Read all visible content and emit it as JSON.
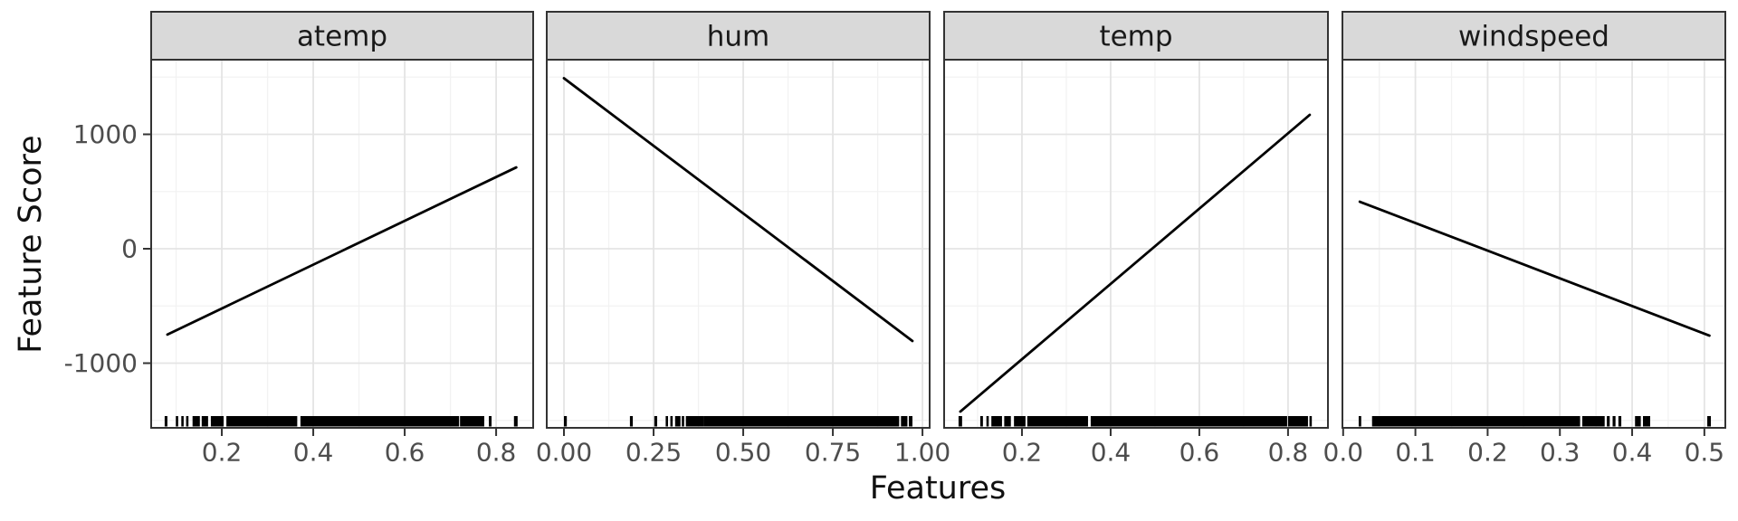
{
  "chart_data": {
    "type": "line",
    "title": "",
    "xlabel": "Features",
    "ylabel": "Feature Score",
    "ylim": [
      -1565,
      1652
    ],
    "grid": "major+minor",
    "legend": "none",
    "y_axis": {
      "major_ticks": [
        1000,
        0,
        -1000
      ],
      "tick_labels": [
        "1000",
        "0",
        "-1000"
      ],
      "minor_ticks": [
        1500,
        500,
        -500,
        -1500
      ]
    },
    "theme": {
      "strip_bg": "#D9D9D9",
      "strip_text": "#1A1A1A",
      "panel_bg": "#FFFFFF",
      "panel_border": "#333333",
      "grid_major": "#E4E4E4",
      "grid_minor": "#F2F2F2",
      "tick_mark": "#333333",
      "tick_label_color": "#4D4D4D",
      "line_color": "#000000",
      "rug_color": "#000000",
      "axis_title_color": "#111111"
    },
    "facets": [
      {
        "label": "atemp",
        "xlim": [
          0.0455,
          0.881
        ],
        "x_major_ticks": [
          0.2,
          0.4,
          0.6,
          0.8
        ],
        "x_tick_labels": [
          "0.2",
          "0.4",
          "0.6",
          "0.8"
        ],
        "x_minor_ticks": [
          0.1,
          0.3,
          0.5,
          0.7
        ],
        "line": {
          "x": [
            0.081,
            0.844
          ],
          "y": [
            -750,
            711
          ]
        },
        "rug": [
          [
            0.075,
            0.081
          ],
          [
            0.1,
            0.104
          ],
          [
            0.112,
            0.116
          ],
          [
            0.122,
            0.127
          ],
          [
            0.136,
            0.152
          ],
          [
            0.156,
            0.17
          ],
          [
            0.176,
            0.204
          ],
          [
            0.21,
            0.365
          ],
          [
            0.372,
            0.719
          ],
          [
            0.721,
            0.774
          ],
          [
            0.784,
            0.79
          ],
          [
            0.839,
            0.847
          ]
        ]
      },
      {
        "label": "hum",
        "xlim": [
          -0.048,
          1.02
        ],
        "x_major_ticks": [
          0,
          0.25,
          0.5,
          0.75,
          1.0
        ],
        "x_tick_labels": [
          "0.00",
          "0.25",
          "0.50",
          "0.75",
          "1.00"
        ],
        "x_minor_ticks": [
          0.125,
          0.375,
          0.625,
          0.875
        ],
        "line": {
          "x": [
            0.0,
            0.972
          ],
          "y": [
            1490,
            -806
          ]
        },
        "rug": [
          [
            0.0,
            0.008
          ],
          [
            0.184,
            0.192
          ],
          [
            0.252,
            0.26
          ],
          [
            0.285,
            0.289
          ],
          [
            0.298,
            0.302
          ],
          [
            0.31,
            0.325
          ],
          [
            0.33,
            0.334
          ],
          [
            0.34,
            0.389
          ],
          [
            0.389,
            0.935
          ],
          [
            0.94,
            0.958
          ],
          [
            0.962,
            0.972
          ]
        ]
      },
      {
        "label": "temp",
        "xlim": [
          0.0245,
          0.89
        ],
        "x_major_ticks": [
          0.2,
          0.4,
          0.6,
          0.8
        ],
        "x_tick_labels": [
          "0.2",
          "0.4",
          "0.6",
          "0.8"
        ],
        "x_minor_ticks": [
          0.1,
          0.3,
          0.5,
          0.7
        ],
        "line": {
          "x": [
            0.061,
            0.849
          ],
          "y": [
            -1423,
            1170
          ]
        },
        "rug": [
          [
            0.057,
            0.065
          ],
          [
            0.106,
            0.112
          ],
          [
            0.12,
            0.125
          ],
          [
            0.131,
            0.155
          ],
          [
            0.16,
            0.175
          ],
          [
            0.182,
            0.208
          ],
          [
            0.212,
            0.349
          ],
          [
            0.355,
            0.798
          ],
          [
            0.8,
            0.845
          ],
          [
            0.849,
            0.853
          ]
        ]
      },
      {
        "label": "windspeed",
        "xlim": [
          -0.001,
          0.529
        ],
        "x_major_ticks": [
          0,
          0.1,
          0.2,
          0.3,
          0.4,
          0.5
        ],
        "x_tick_labels": [
          "0.0",
          "0.1",
          "0.2",
          "0.3",
          "0.4",
          "0.5"
        ],
        "x_minor_ticks": [
          0.05,
          0.15,
          0.25,
          0.35,
          0.45
        ],
        "line": {
          "x": [
            0.023,
            0.507
          ],
          "y": [
            411,
            -759
          ]
        },
        "rug": [
          [
            0.0215,
            0.025
          ],
          [
            0.04,
            0.328
          ],
          [
            0.331,
            0.362
          ],
          [
            0.365,
            0.369
          ],
          [
            0.373,
            0.377
          ],
          [
            0.381,
            0.385
          ],
          [
            0.404,
            0.412
          ],
          [
            0.415,
            0.425
          ],
          [
            0.504,
            0.509
          ]
        ]
      }
    ]
  }
}
